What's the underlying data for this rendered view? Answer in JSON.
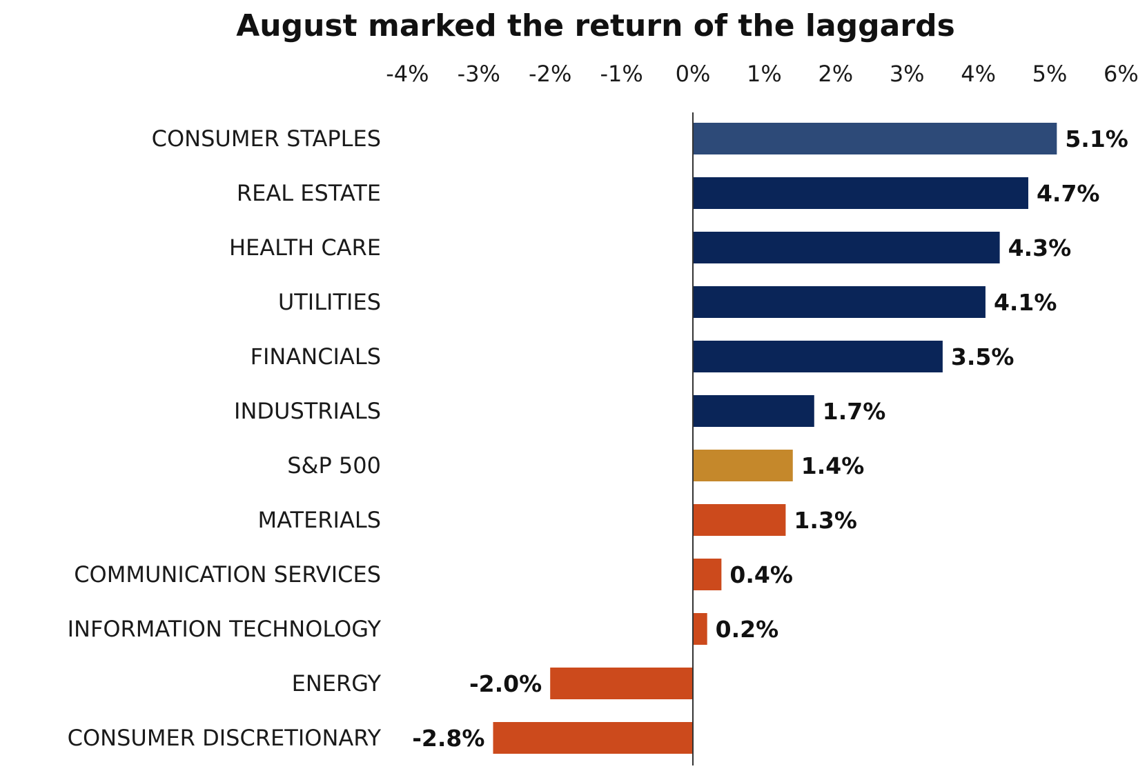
{
  "chart_data": {
    "type": "bar",
    "orientation": "horizontal",
    "title": "August marked the return of the laggards",
    "xlim": [
      -4,
      6
    ],
    "x_ticks": [
      -4,
      -3,
      -2,
      -1,
      0,
      1,
      2,
      3,
      4,
      5,
      6
    ],
    "x_tick_labels": [
      "-4%",
      "-3%",
      "-2%",
      "-1%",
      "0%",
      "1%",
      "2%",
      "3%",
      "4%",
      "5%",
      "6%"
    ],
    "x_axis_position": "top",
    "grid": false,
    "legend": "none",
    "categories": [
      "CONSUMER STAPLES",
      "REAL ESTATE",
      "HEALTH CARE",
      "UTILITIES",
      "FINANCIALS",
      "INDUSTRIALS",
      "S&P 500",
      "MATERIALS",
      "COMMUNICATION SERVICES",
      "INFORMATION TECHNOLOGY",
      "ENERGY",
      "CONSUMER DISCRETIONARY"
    ],
    "values": [
      5.1,
      4.7,
      4.3,
      4.1,
      3.5,
      1.7,
      1.4,
      1.3,
      0.4,
      0.2,
      -2.0,
      -2.8
    ],
    "value_labels": [
      "5.1%",
      "4.7%",
      "4.3%",
      "4.1%",
      "3.5%",
      "1.7%",
      "1.4%",
      "1.3%",
      "0.4%",
      "0.2%",
      "-2.0%",
      "-2.8%"
    ],
    "bar_colors": [
      "#2d4a78",
      "#0a2558",
      "#0a2558",
      "#0a2558",
      "#0a2558",
      "#0a2558",
      "#c5882b",
      "#cc4a1c",
      "#cc4a1c",
      "#cc4a1c",
      "#cc4a1c",
      "#cc4a1c"
    ]
  }
}
